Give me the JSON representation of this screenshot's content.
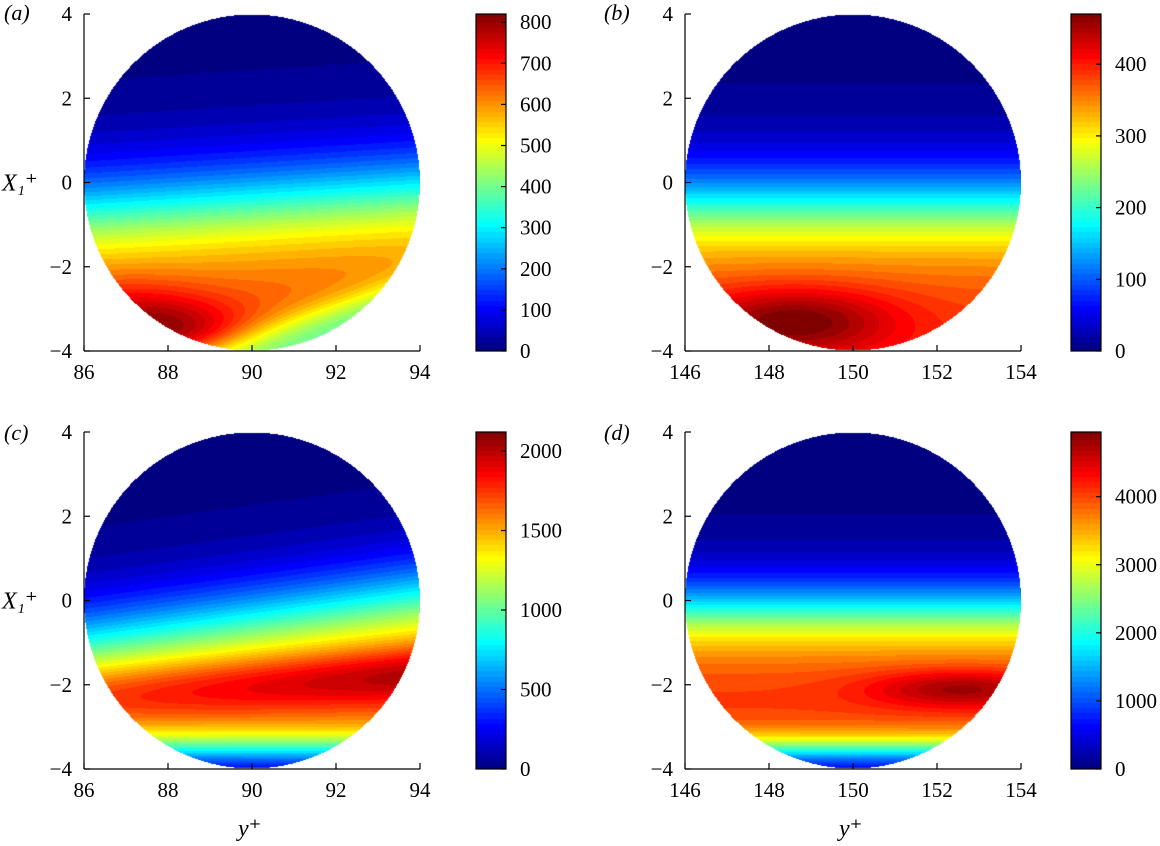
{
  "chart_data": [
    {
      "panel": "(a)",
      "type": "heatmap",
      "x": {
        "label": "y⁺",
        "range": [
          86,
          94
        ],
        "ticks": [
          "86",
          "88",
          "90",
          "92",
          "94"
        ]
      },
      "y": {
        "label": "X₁⁺",
        "range": [
          -4,
          4
        ],
        "ticks": [
          "−4",
          "−2",
          "0",
          "2",
          "4"
        ]
      },
      "colorbar": {
        "range": [
          0,
          820
        ],
        "ticks": [
          "0",
          "100",
          "200",
          "300",
          "400",
          "500",
          "600",
          "700",
          "800"
        ]
      },
      "field": {
        "max": 820,
        "peak_x": 87.9,
        "peak_y": -3.2,
        "shape": "a"
      }
    },
    {
      "panel": "(b)",
      "type": "heatmap",
      "x": {
        "label": "y⁺",
        "range": [
          146,
          154
        ],
        "ticks": [
          "146",
          "148",
          "150",
          "152",
          "154"
        ]
      },
      "y": {
        "label": "X₁⁺",
        "range": [
          -4,
          4
        ],
        "ticks": [
          "−4",
          "−2",
          "0",
          "2",
          "4"
        ]
      },
      "colorbar": {
        "range": [
          0,
          470
        ],
        "ticks": [
          "0",
          "100",
          "200",
          "300",
          "400"
        ]
      },
      "field": {
        "max": 470,
        "peak_x": 148.0,
        "peak_y": -3.3,
        "shape": "b"
      }
    },
    {
      "panel": "(c)",
      "type": "heatmap",
      "x": {
        "label": "y⁺",
        "range": [
          86,
          94
        ],
        "ticks": [
          "86",
          "88",
          "90",
          "92",
          "94"
        ]
      },
      "y": {
        "label": "X₁⁺",
        "range": [
          -4,
          4
        ],
        "ticks": [
          "−4",
          "−2",
          "0",
          "2",
          "4"
        ]
      },
      "colorbar": {
        "range": [
          0,
          2120
        ],
        "ticks": [
          "0",
          "500",
          "1000",
          "1500",
          "2000"
        ]
      },
      "field": {
        "max": 2120,
        "peak_x": 93.2,
        "peak_y": -1.9,
        "shape": "c"
      }
    },
    {
      "panel": "(d)",
      "type": "heatmap",
      "x": {
        "label": "y⁺",
        "range": [
          146,
          154
        ],
        "ticks": [
          "146",
          "148",
          "150",
          "152",
          "154"
        ]
      },
      "y": {
        "label": "X₁⁺",
        "range": [
          -4,
          4
        ],
        "ticks": [
          "−4",
          "−2",
          "0",
          "2",
          "4"
        ]
      },
      "colorbar": {
        "range": [
          0,
          4950
        ],
        "ticks": [
          "0",
          "1000",
          "2000",
          "3000",
          "4000"
        ]
      },
      "field": {
        "max": 4950,
        "peak_x": 152.7,
        "peak_y": -2.1,
        "shape": "d"
      }
    }
  ],
  "colormap": "jet",
  "colors": {
    "axis": "#000000",
    "background": "#ffffff"
  }
}
